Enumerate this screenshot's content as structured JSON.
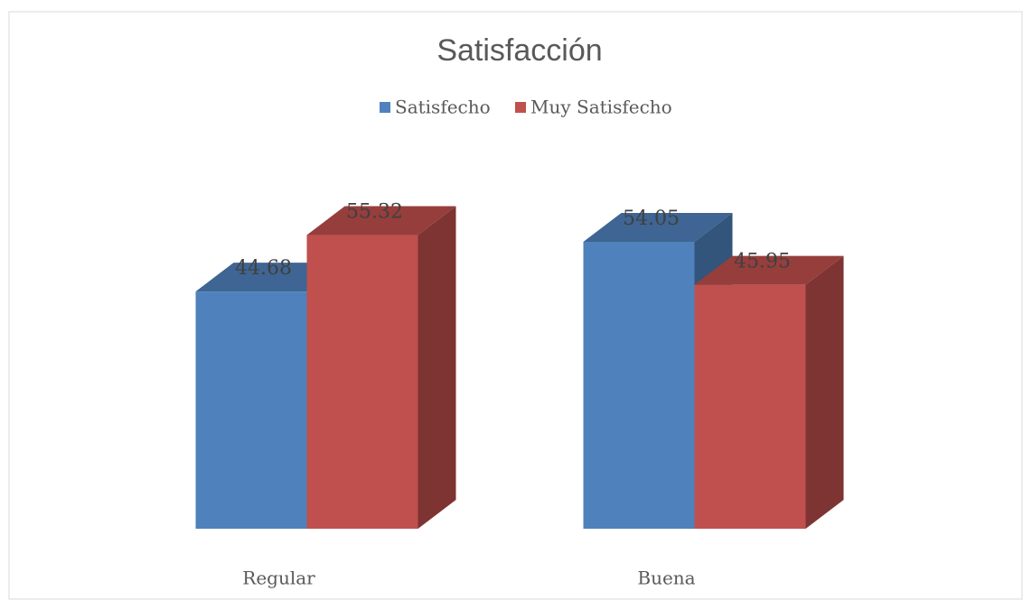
{
  "chart_data": {
    "type": "bar3d",
    "title": "Satisfacción",
    "categories": [
      "Regular",
      "Buena"
    ],
    "series": [
      {
        "name": "Satisfecho",
        "color": "#4f81bd",
        "values": [
          44.68,
          54.05
        ]
      },
      {
        "name": "Muy Satisfecho",
        "color": "#c0504d",
        "values": [
          55.32,
          45.95
        ]
      }
    ],
    "ylim": [
      0,
      60
    ]
  }
}
